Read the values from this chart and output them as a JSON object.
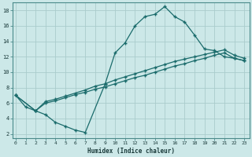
{
  "xlabel": "Humidex (Indice chaleur)",
  "bg_color": "#cce8e8",
  "grid_color": "#aacccc",
  "line_color": "#1a6b6b",
  "xlim": [
    -0.3,
    23.5
  ],
  "ylim": [
    1.5,
    19.0
  ],
  "xticks": [
    0,
    1,
    2,
    3,
    4,
    5,
    6,
    7,
    8,
    9,
    10,
    11,
    12,
    13,
    14,
    15,
    16,
    17,
    18,
    19,
    20,
    21,
    22,
    23
  ],
  "yticks": [
    2,
    4,
    6,
    8,
    10,
    12,
    14,
    16,
    18
  ],
  "line1_x": [
    0,
    1,
    2,
    3,
    4,
    5,
    6,
    7,
    9,
    10,
    11,
    12,
    13,
    14,
    15,
    16,
    17,
    18,
    19,
    20,
    21,
    22,
    23
  ],
  "line1_y": [
    7,
    5.5,
    5,
    4.5,
    3.5,
    3.0,
    2.5,
    2.2,
    8.5,
    12.5,
    13.8,
    16.0,
    17.2,
    17.5,
    18.5,
    17.2,
    16.5,
    14.8,
    13.0,
    12.8,
    12.0,
    11.8,
    11.5
  ],
  "line2_x": [
    0,
    2,
    3,
    4,
    5,
    6,
    7,
    8,
    9,
    10,
    11,
    12,
    13,
    14,
    15,
    16,
    17,
    18,
    19,
    20,
    21,
    22,
    23
  ],
  "line2_y": [
    7,
    5,
    6.0,
    6.3,
    6.7,
    7.1,
    7.4,
    7.8,
    8.1,
    8.5,
    8.9,
    9.3,
    9.6,
    10.0,
    10.4,
    10.8,
    11.1,
    11.5,
    11.8,
    12.2,
    12.5,
    11.8,
    11.5
  ],
  "line3_x": [
    0,
    2,
    3,
    4,
    5,
    6,
    7,
    8,
    9,
    10,
    11,
    12,
    13,
    14,
    15,
    16,
    17,
    18,
    19,
    20,
    21,
    22,
    23
  ],
  "line3_y": [
    7,
    5,
    6.2,
    6.5,
    6.9,
    7.3,
    7.7,
    8.2,
    8.5,
    9.0,
    9.4,
    9.8,
    10.2,
    10.6,
    11.0,
    11.4,
    11.7,
    12.0,
    12.3,
    12.6,
    12.9,
    12.2,
    11.8
  ]
}
